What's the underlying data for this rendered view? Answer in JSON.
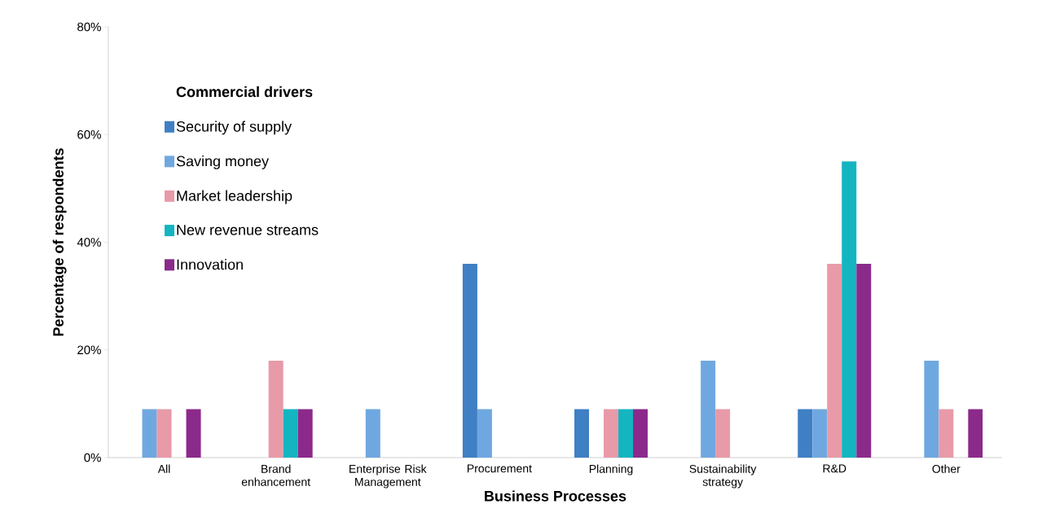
{
  "chart_data": {
    "type": "bar",
    "xlabel": "Business Processes",
    "ylabel": "Percentage of respondents",
    "legend_title": "Commercial drivers",
    "categories": [
      "All",
      "Brand enhancement",
      "Enterprise Risk Management",
      "Procurement",
      "Planning",
      "Sustainability strategy",
      "R&D",
      "Other"
    ],
    "series": [
      {
        "name": "Security of supply",
        "color": "#3f7fc4",
        "values": [
          0,
          0,
          0,
          36,
          9,
          0,
          9,
          0
        ]
      },
      {
        "name": "Saving money",
        "color": "#6fa8e0",
        "values": [
          9,
          0,
          9,
          9,
          0,
          18,
          9,
          18
        ]
      },
      {
        "name": "Market leadership",
        "color": "#e89aa8",
        "values": [
          9,
          18,
          0,
          0,
          9,
          9,
          36,
          9
        ]
      },
      {
        "name": "New revenue streams",
        "color": "#13b5c1",
        "values": [
          0,
          9,
          0,
          0,
          9,
          0,
          55,
          0
        ]
      },
      {
        "name": "Innovation",
        "color": "#8b2a8b",
        "values": [
          9,
          9,
          0,
          0,
          9,
          0,
          36,
          9
        ]
      }
    ],
    "ylim": [
      0,
      80
    ],
    "yticks": [
      {
        "value": 0,
        "label": "0%"
      },
      {
        "value": 20,
        "label": "20%"
      },
      {
        "value": 40,
        "label": "40%"
      },
      {
        "value": 60,
        "label": "60%"
      },
      {
        "value": 80,
        "label": "80%"
      }
    ],
    "grid": false,
    "legend": "top left"
  }
}
